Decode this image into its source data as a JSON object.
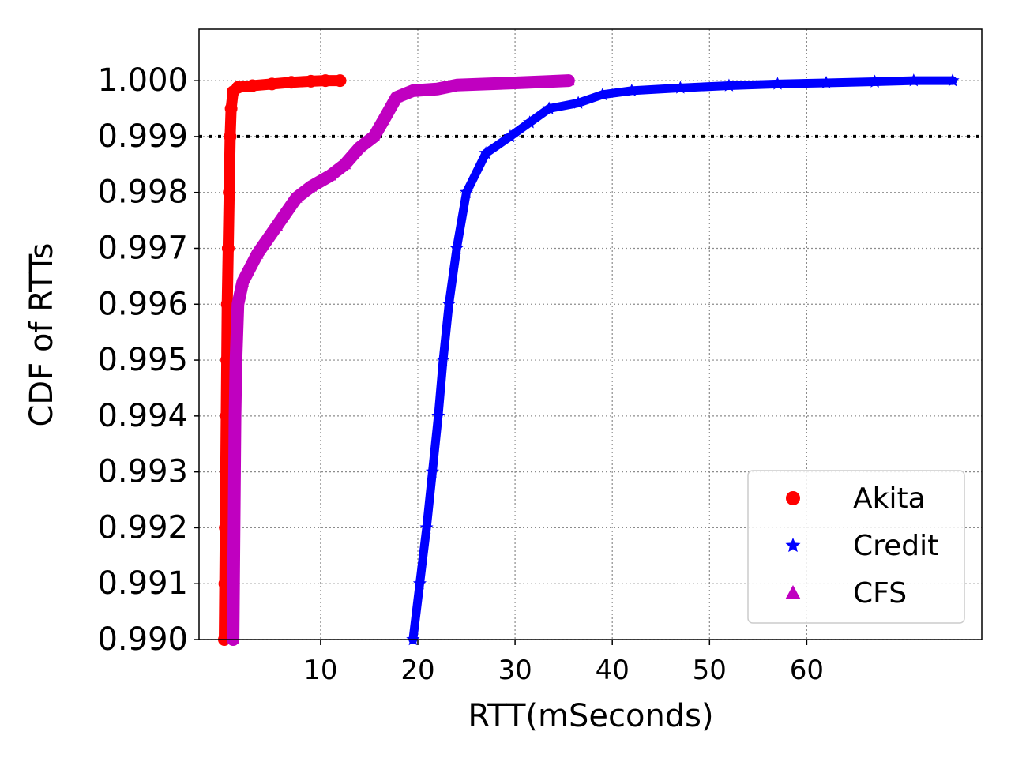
{
  "chart_data": {
    "type": "scatter",
    "title": "",
    "xlabel": "RTT(mSeconds)",
    "ylabel": "CDF of RTTs",
    "xlim": [
      -2.5,
      78
    ],
    "ylim": [
      0.99,
      1.00092
    ],
    "xticks": [
      10,
      20,
      30,
      40,
      50,
      60
    ],
    "xtick_labels": [
      "10",
      "20",
      "30",
      "40",
      "50",
      "60"
    ],
    "yticks": [
      0.99,
      0.991,
      0.992,
      0.993,
      0.994,
      0.995,
      0.996,
      0.997,
      0.998,
      0.999,
      1.0
    ],
    "ytick_labels": [
      "0.990",
      "0.991",
      "0.992",
      "0.993",
      "0.994",
      "0.995",
      "0.996",
      "0.997",
      "0.998",
      "0.999",
      "1.000"
    ],
    "grid": true,
    "reference_line": {
      "y": 0.999,
      "style": "dotted",
      "color": "#000000"
    },
    "legend": {
      "placement": "bottom-right"
    },
    "series": [
      {
        "name": "Akita",
        "color": "#ff0000",
        "marker": "circle",
        "points": [
          [
            0.1,
            0.99
          ],
          [
            0.15,
            0.991
          ],
          [
            0.2,
            0.992
          ],
          [
            0.25,
            0.993
          ],
          [
            0.3,
            0.994
          ],
          [
            0.35,
            0.995
          ],
          [
            0.4,
            0.996
          ],
          [
            0.5,
            0.997
          ],
          [
            0.6,
            0.998
          ],
          [
            0.7,
            0.999
          ],
          [
            0.8,
            0.9995
          ],
          [
            1.0,
            0.9998
          ],
          [
            1.5,
            0.99988
          ],
          [
            3,
            0.99991
          ],
          [
            5,
            0.99994
          ],
          [
            7,
            0.99997
          ],
          [
            9,
            0.99999
          ],
          [
            10.5,
            1.0
          ],
          [
            12,
            1.0
          ]
        ]
      },
      {
        "name": "Credit",
        "color": "#0000ff",
        "marker": "star",
        "points": [
          [
            19.5,
            0.99
          ],
          [
            20.2,
            0.991
          ],
          [
            20.9,
            0.992
          ],
          [
            21.5,
            0.993
          ],
          [
            22.1,
            0.994
          ],
          [
            22.6,
            0.995
          ],
          [
            23.2,
            0.996
          ],
          [
            24.0,
            0.997
          ],
          [
            25.0,
            0.998
          ],
          [
            27.0,
            0.9987
          ],
          [
            29.5,
            0.999
          ],
          [
            31.5,
            0.99925
          ],
          [
            33.5,
            0.9995
          ],
          [
            36.5,
            0.9996
          ],
          [
            39,
            0.99975
          ],
          [
            42,
            0.99982
          ],
          [
            47,
            0.99987
          ],
          [
            52,
            0.99991
          ],
          [
            57,
            0.99994
          ],
          [
            62,
            0.99996
          ],
          [
            67,
            0.99998
          ],
          [
            71,
            1.0
          ],
          [
            75,
            1.0
          ]
        ]
      },
      {
        "name": "CFS",
        "color": "#c000c0",
        "marker": "triangle",
        "points": [
          [
            1.0,
            0.99
          ],
          [
            1.05,
            0.991
          ],
          [
            1.1,
            0.992
          ],
          [
            1.15,
            0.993
          ],
          [
            1.2,
            0.994
          ],
          [
            1.3,
            0.995
          ],
          [
            1.5,
            0.996
          ],
          [
            2.0,
            0.9964
          ],
          [
            3.5,
            0.9969
          ],
          [
            5.5,
            0.9974
          ],
          [
            7.5,
            0.9979
          ],
          [
            9.0,
            0.9981
          ],
          [
            11,
            0.9983
          ],
          [
            12.5,
            0.9985
          ],
          [
            14,
            0.9988
          ],
          [
            15.5,
            0.999
          ],
          [
            16.5,
            0.9993
          ],
          [
            17.8,
            0.9997
          ],
          [
            19.5,
            0.99982
          ],
          [
            22,
            0.99985
          ],
          [
            24,
            0.99992
          ],
          [
            27,
            0.99994
          ],
          [
            30,
            0.99996
          ],
          [
            33,
            0.99998
          ],
          [
            35.5,
            1.0
          ]
        ]
      }
    ]
  }
}
